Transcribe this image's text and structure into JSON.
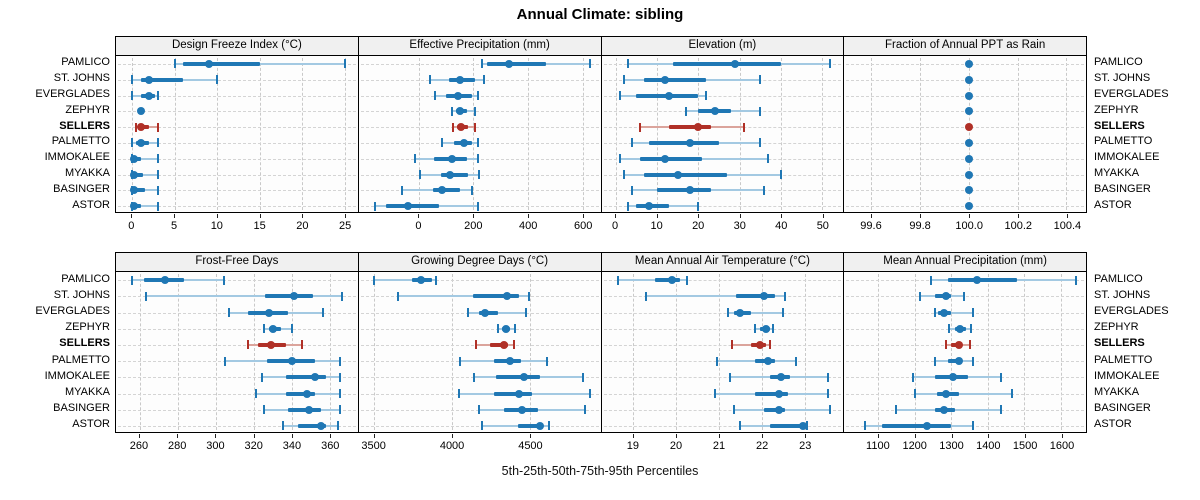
{
  "title": "Annual Climate: sibling",
  "footer": "5th-25th-50th-75th-95th Percentiles",
  "sites": [
    "PAMLICO",
    "ST. JOHNS",
    "EVERGLADES",
    "ZEPHYR",
    "SELLERS",
    "PALMETTO",
    "IMMOKALEE",
    "MYAKKA",
    "BASINGER",
    "ASTOR"
  ],
  "highlight_site": "SELLERS",
  "colors": {
    "series": "#1f77b4",
    "series_light": "#a3c9e2",
    "highlight": "#b03027",
    "highlight_light": "#dba49c"
  },
  "chart_data": {
    "type": "dotplot-percentiles",
    "percentiles": [
      5,
      25,
      50,
      75,
      95
    ],
    "legend_note": "each row shows 5th-25th-50th-75th-95th percentile whiskers with median dot; SELLERS highlighted red",
    "grid": "dashed",
    "panels": [
      {
        "title": "Design Freeze Index (°C)",
        "axis": {
          "min": -1.9,
          "max": 26.5,
          "ticks": [
            {
              "v": 0,
              "label": "0"
            },
            {
              "v": 5,
              "label": "5"
            },
            {
              "v": 10,
              "label": "10"
            },
            {
              "v": 15,
              "label": "15"
            },
            {
              "v": 20,
              "label": "20"
            },
            {
              "v": 25,
              "label": "25"
            }
          ]
        },
        "values": [
          [
            5,
            6,
            9,
            15,
            25
          ],
          [
            0,
            1,
            2,
            6,
            10
          ],
          [
            0,
            1,
            2,
            2.7,
            3
          ],
          [
            1,
            1,
            1,
            1,
            1
          ],
          [
            0.4,
            0.7,
            1,
            2,
            3
          ],
          [
            0,
            0.5,
            1,
            2,
            3
          ],
          [
            0,
            0,
            0.2,
            1,
            3
          ],
          [
            0,
            0,
            0.2,
            1.3,
            3
          ],
          [
            0,
            0,
            0.2,
            1.5,
            3
          ],
          [
            0,
            0,
            0.2,
            1,
            3
          ]
        ]
      },
      {
        "title": "Effective Precipitation (mm)",
        "axis": {
          "min": -220,
          "max": 665,
          "ticks": [
            {
              "v": 0,
              "label": "0"
            },
            {
              "v": 200,
              "label": "200"
            },
            {
              "v": 400,
              "label": "400"
            },
            {
              "v": 600,
              "label": "600"
            }
          ]
        },
        "values": [
          [
            230,
            250,
            330,
            465,
            625
          ],
          [
            40,
            110,
            150,
            205,
            240
          ],
          [
            60,
            100,
            145,
            195,
            215
          ],
          [
            120,
            135,
            150,
            175,
            205
          ],
          [
            125,
            140,
            155,
            180,
            205
          ],
          [
            85,
            130,
            165,
            195,
            215
          ],
          [
            -15,
            55,
            120,
            175,
            215
          ],
          [
            5,
            80,
            115,
            180,
            220
          ],
          [
            -60,
            50,
            85,
            150,
            195
          ],
          [
            -160,
            -120,
            -40,
            75,
            215
          ]
        ]
      },
      {
        "title": "Elevation (m)",
        "axis": {
          "min": -3.4,
          "max": 55.1,
          "ticks": [
            {
              "v": 0,
              "label": "0"
            },
            {
              "v": 10,
              "label": "10"
            },
            {
              "v": 20,
              "label": "20"
            },
            {
              "v": 30,
              "label": "30"
            },
            {
              "v": 40,
              "label": "40"
            },
            {
              "v": 50,
              "label": "50"
            }
          ]
        },
        "values": [
          [
            3,
            14,
            29,
            40,
            52
          ],
          [
            2,
            7,
            12,
            22,
            35
          ],
          [
            1,
            5,
            13,
            20,
            22
          ],
          [
            17,
            20,
            24,
            28,
            35
          ],
          [
            6,
            13,
            20,
            23,
            31
          ],
          [
            4,
            8,
            18,
            25,
            35
          ],
          [
            1,
            6,
            12,
            21,
            37
          ],
          [
            2,
            7,
            15,
            27,
            40
          ],
          [
            4,
            10,
            18,
            23,
            36
          ],
          [
            3,
            5,
            8,
            13,
            20
          ]
        ]
      },
      {
        "title": "Fraction of Annual PPT as Rain",
        "axis": {
          "min": 99.49,
          "max": 100.48,
          "ticks": [
            {
              "v": 99.6,
              "label": "99.6"
            },
            {
              "v": 99.8,
              "label": "99.8"
            },
            {
              "v": 100.0,
              "label": "100.0"
            },
            {
              "v": 100.2,
              "label": "100.2"
            },
            {
              "v": 100.4,
              "label": "100.4"
            }
          ]
        },
        "values": [
          [
            100,
            100,
            100,
            100,
            100
          ],
          [
            100,
            100,
            100,
            100,
            100
          ],
          [
            100,
            100,
            100,
            100,
            100
          ],
          [
            100,
            100,
            100,
            100,
            100
          ],
          [
            100,
            100,
            100,
            100,
            100
          ],
          [
            100,
            100,
            100,
            100,
            100
          ],
          [
            100,
            100,
            100,
            100,
            100
          ],
          [
            100,
            100,
            100,
            100,
            100
          ],
          [
            100,
            100,
            100,
            100,
            100
          ],
          [
            100,
            100,
            100,
            100,
            100
          ]
        ]
      },
      {
        "title": "Frost-Free Days",
        "axis": {
          "min": 247.5,
          "max": 374.5,
          "ticks": [
            {
              "v": 260,
              "label": "260"
            },
            {
              "v": 280,
              "label": "280"
            },
            {
              "v": 300,
              "label": "300"
            },
            {
              "v": 320,
              "label": "320"
            },
            {
              "v": 340,
              "label": "340"
            },
            {
              "v": 360,
              "label": "360"
            }
          ]
        },
        "values": [
          [
            256,
            262,
            273,
            283,
            304
          ],
          [
            263,
            326,
            341,
            351,
            366
          ],
          [
            307,
            317,
            328,
            338,
            356
          ],
          [
            325,
            328,
            330,
            334,
            340
          ],
          [
            317,
            322,
            329,
            337,
            345
          ],
          [
            305,
            327,
            340,
            352,
            365
          ],
          [
            324,
            337,
            352,
            358,
            365
          ],
          [
            321,
            337,
            348,
            352,
            365
          ],
          [
            325,
            338,
            349,
            355,
            365
          ],
          [
            335,
            343,
            355,
            358,
            364
          ]
        ]
      },
      {
        "title": "Growing Degree Days (°C)",
        "axis": {
          "min": 3400,
          "max": 4950,
          "ticks": [
            {
              "v": 3500,
              "label": "3500"
            },
            {
              "v": 4000,
              "label": "4000"
            },
            {
              "v": 4500,
              "label": "4500"
            }
          ]
        },
        "values": [
          [
            3500,
            3740,
            3800,
            3870,
            3895
          ],
          [
            3650,
            4130,
            4350,
            4430,
            4490
          ],
          [
            4100,
            4170,
            4210,
            4290,
            4470
          ],
          [
            4290,
            4320,
            4345,
            4370,
            4400
          ],
          [
            4150,
            4240,
            4330,
            4360,
            4395
          ],
          [
            4050,
            4270,
            4370,
            4440,
            4610
          ],
          [
            4140,
            4280,
            4460,
            4560,
            4840
          ],
          [
            4040,
            4270,
            4430,
            4510,
            4880
          ],
          [
            4170,
            4330,
            4445,
            4550,
            4850
          ],
          [
            4190,
            4420,
            4565,
            4580,
            4620
          ]
        ]
      },
      {
        "title": "Mean Annual Air Temperature (°C)",
        "axis": {
          "min": 18.26,
          "max": 23.9,
          "ticks": [
            {
              "v": 19,
              "label": "19"
            },
            {
              "v": 20,
              "label": "20"
            },
            {
              "v": 21,
              "label": "21"
            },
            {
              "v": 22,
              "label": "22"
            },
            {
              "v": 23,
              "label": "23"
            }
          ]
        },
        "values": [
          [
            18.65,
            19.5,
            19.9,
            20.1,
            20.25
          ],
          [
            19.3,
            21.4,
            22.05,
            22.3,
            22.55
          ],
          [
            21.2,
            21.35,
            21.5,
            21.75,
            22.5
          ],
          [
            21.85,
            21.95,
            22.1,
            22.2,
            22.25
          ],
          [
            21.3,
            21.75,
            21.95,
            22.1,
            22.2
          ],
          [
            20.95,
            21.85,
            22.15,
            22.3,
            22.8
          ],
          [
            21.25,
            22.2,
            22.45,
            22.65,
            23.55
          ],
          [
            20.9,
            21.85,
            22.4,
            22.6,
            23.55
          ],
          [
            21.35,
            22.05,
            22.4,
            22.55,
            23.6
          ],
          [
            21.5,
            22.2,
            22.95,
            23.0,
            23.05
          ]
        ]
      },
      {
        "title": "Mean Annual Precipitation (mm)",
        "axis": {
          "min": 1008,
          "max": 1668,
          "ticks": [
            {
              "v": 1100,
              "label": "1100"
            },
            {
              "v": 1200,
              "label": "1200"
            },
            {
              "v": 1300,
              "label": "1300"
            },
            {
              "v": 1400,
              "label": "1400"
            },
            {
              "v": 1500,
              "label": "1500"
            },
            {
              "v": 1600,
              "label": "1600"
            }
          ]
        },
        "values": [
          [
            1245,
            1290,
            1370,
            1480,
            1640
          ],
          [
            1215,
            1255,
            1285,
            1300,
            1335
          ],
          [
            1255,
            1265,
            1280,
            1300,
            1360
          ],
          [
            1295,
            1310,
            1325,
            1340,
            1355
          ],
          [
            1285,
            1300,
            1320,
            1330,
            1350
          ],
          [
            1255,
            1290,
            1320,
            1330,
            1360
          ],
          [
            1195,
            1255,
            1305,
            1345,
            1435
          ],
          [
            1200,
            1260,
            1285,
            1320,
            1465
          ],
          [
            1150,
            1255,
            1280,
            1310,
            1435
          ],
          [
            1065,
            1110,
            1235,
            1300,
            1360
          ]
        ]
      }
    ]
  }
}
